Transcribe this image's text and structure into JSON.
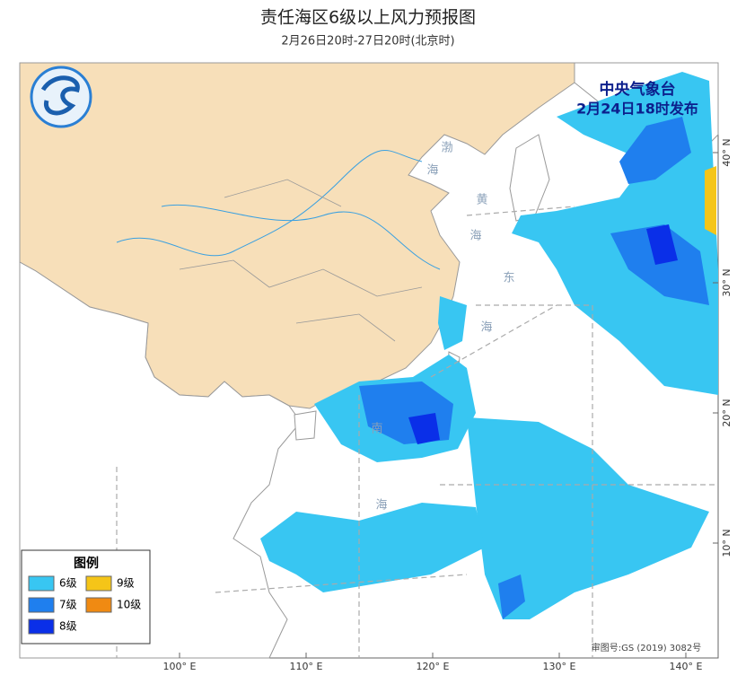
{
  "header": {
    "title": "责任海区6级以上风力预报图",
    "subtitle": "2月26日20时-27日20时(北京时)"
  },
  "issuer": {
    "agency": "中央气象台",
    "issued": "2月24日18时发布"
  },
  "legend": {
    "title": "图例",
    "items": [
      {
        "label": "6级",
        "color": "#38c6f2"
      },
      {
        "label": "7级",
        "color": "#1f7fee"
      },
      {
        "label": "8级",
        "color": "#0a2fe8"
      },
      {
        "label": "9级",
        "color": "#f5c518"
      },
      {
        "label": "10级",
        "color": "#f08a12"
      }
    ]
  },
  "axes": {
    "longitudes": [
      {
        "value": 100,
        "label": "100° E"
      },
      {
        "value": 110,
        "label": "110° E"
      },
      {
        "value": 120,
        "label": "120° E"
      },
      {
        "value": 130,
        "label": "130° E"
      },
      {
        "value": 140,
        "label": "140° E"
      }
    ],
    "latitudes": [
      {
        "value": 40,
        "label": "40° N"
      },
      {
        "value": 30,
        "label": "30° N"
      },
      {
        "value": 20,
        "label": "20° N"
      },
      {
        "value": 10,
        "label": "10° N"
      }
    ]
  },
  "seas": [
    {
      "chars": [
        "渤",
        "海"
      ]
    },
    {
      "chars": [
        "黄",
        "海"
      ]
    },
    {
      "chars": [
        "东",
        "海"
      ]
    },
    {
      "chars": [
        "南",
        "海"
      ]
    }
  ],
  "map_approval": "审图号:GS (2019) 3082号"
}
